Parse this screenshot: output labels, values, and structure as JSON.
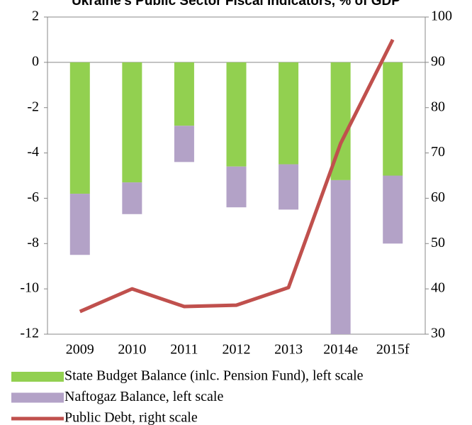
{
  "chart_data": {
    "type": "bar+line",
    "title": "Ukraine's Public Sector Fiscal Indicators, % of GDP",
    "categories": [
      "2009",
      "2010",
      "2011",
      "2012",
      "2013",
      "2014e",
      "2015f"
    ],
    "series": [
      {
        "name": "State Budget Balance (inlc. Pension Fund), left scale",
        "color": "#92d050",
        "type": "bar",
        "values": [
          -5.8,
          -5.3,
          -2.8,
          -4.6,
          -4.5,
          -5.2,
          -5.0
        ]
      },
      {
        "name": "Naftogaz Balance, left scale",
        "color": "#b3a2c7",
        "type": "bar",
        "values": [
          -2.7,
          -1.4,
          -1.6,
          -1.8,
          -2.0,
          -6.8,
          -3.0
        ]
      },
      {
        "name": "Public Debt, right scale",
        "color": "#c0504d",
        "type": "line",
        "axis": "y2",
        "values": [
          35,
          40,
          36.1,
          36.4,
          40.3,
          72.1,
          95
        ]
      }
    ],
    "ylim": [
      -12,
      2
    ],
    "yticks": [
      2,
      0,
      -2,
      -4,
      -6,
      -8,
      -10,
      -12
    ],
    "y2lim": [
      30,
      100
    ],
    "y2ticks": [
      100,
      90,
      80,
      70,
      60,
      50,
      40,
      30
    ],
    "stacked": true
  }
}
